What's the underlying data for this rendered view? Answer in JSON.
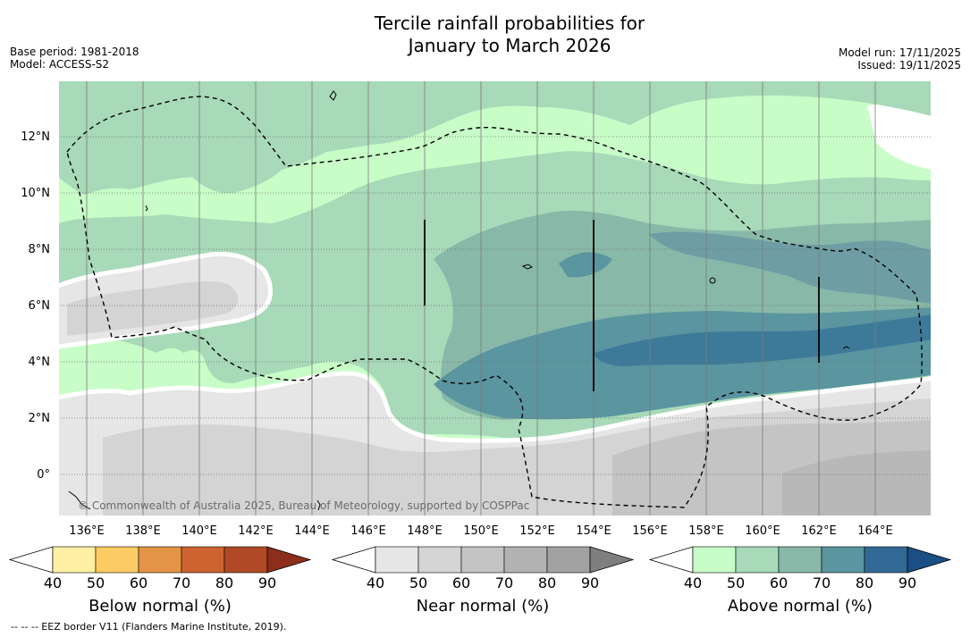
{
  "title": {
    "line1": "Tercile rainfall probabilities for",
    "line2": "January to March 2026"
  },
  "meta": {
    "base_period": "Base period: 1981-2018",
    "model": "Model: ACCESS-S2",
    "model_run": "Model run: 17/11/2025",
    "issued": "Issued: 19/11/2025"
  },
  "map": {
    "lat_labels": [
      "12°N",
      "10°N",
      "8°N",
      "6°N",
      "4°N",
      "2°N",
      "0°"
    ],
    "lon_labels": [
      "136°E",
      "138°E",
      "140°E",
      "142°E",
      "144°E",
      "146°E",
      "148°E",
      "150°E",
      "152°E",
      "154°E",
      "156°E",
      "158°E",
      "160°E",
      "162°E",
      "164°E"
    ],
    "copyright": "© Commonwealth of Australia 2025, Bureau of Meteorology, supported by COSPPac"
  },
  "colorbars": {
    "below": {
      "title": "Below normal (%)",
      "ticks": [
        "40",
        "50",
        "60",
        "70",
        "80",
        "90"
      ],
      "colors": [
        "#fff0a3",
        "#fdcb64",
        "#e49446",
        "#cc6331",
        "#b04a26",
        "#8c2e1b"
      ]
    },
    "near": {
      "title": "Near normal (%)",
      "ticks": [
        "40",
        "50",
        "60",
        "70",
        "80",
        "90"
      ],
      "colors": [
        "#e6e6e6",
        "#d4d4d4",
        "#c4c4c4",
        "#b2b2b2",
        "#a2a2a2",
        "#7f7f7f"
      ]
    },
    "above": {
      "title": "Above normal (%)",
      "ticks": [
        "40",
        "50",
        "60",
        "70",
        "80",
        "90"
      ],
      "colors": [
        "#c8fdc8",
        "#a8d9b8",
        "#88b8a8",
        "#5a95a0",
        "#326a96",
        "#1a4f85"
      ]
    }
  },
  "footnote": "--  --  -- EEZ border V11 (Flanders Marine Institute, 2019)."
}
